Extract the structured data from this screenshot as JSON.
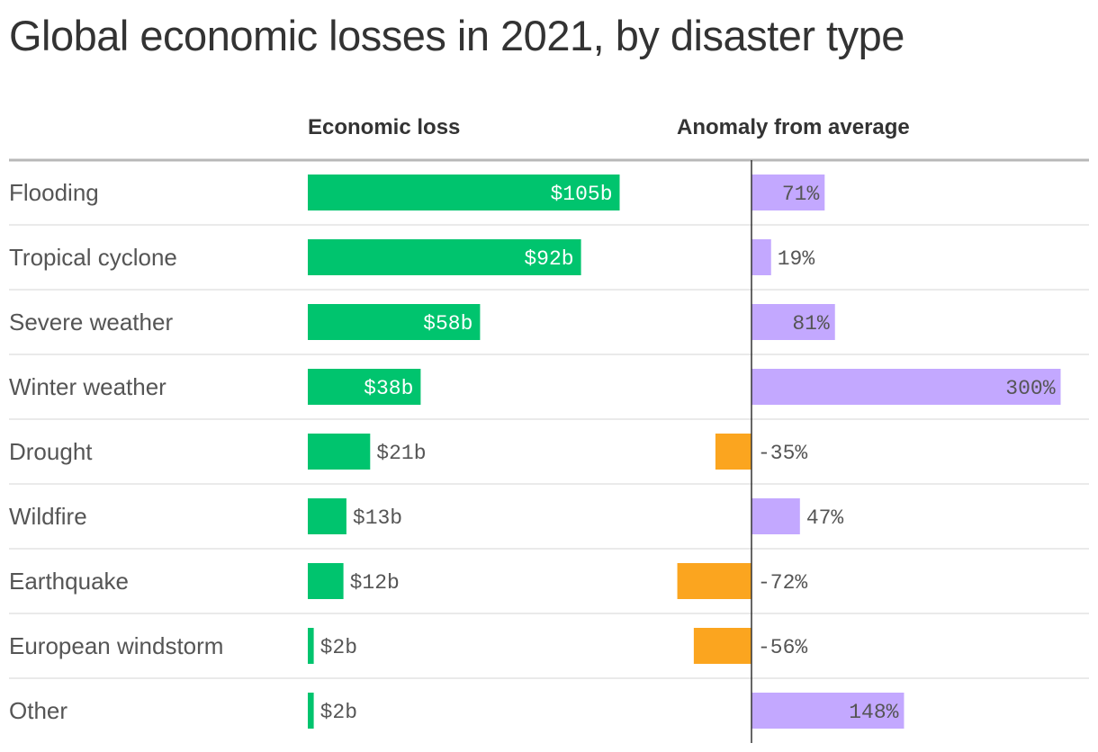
{
  "chart_data": {
    "type": "bar",
    "title": "Global economic losses in 2021, by disaster type",
    "columns": [
      "Economic loss",
      "Anomaly from average"
    ],
    "categories": [
      "Flooding",
      "Tropical cyclone",
      "Severe weather",
      "Winter weather",
      "Drought",
      "Wildfire",
      "Earthquake",
      "European windstorm",
      "Other"
    ],
    "series": [
      {
        "name": "Economic loss",
        "values": [
          105,
          92,
          58,
          38,
          21,
          13,
          12,
          2,
          2
        ],
        "labels": [
          "$105b",
          "$92b",
          "$58b",
          "$38b",
          "$21b",
          "$13b",
          "$12b",
          "$2b",
          "$2b"
        ],
        "color": "#00c46e"
      },
      {
        "name": "Anomaly from average",
        "values": [
          71,
          19,
          81,
          300,
          -35,
          47,
          -72,
          -56,
          148
        ],
        "labels": [
          "71%",
          "19%",
          "81%",
          "300%",
          "-35%",
          "47%",
          "-72%",
          "-56%",
          "148%"
        ],
        "colors": {
          "positive": "#c3a8ff",
          "negative": "#fba51f"
        }
      }
    ]
  }
}
